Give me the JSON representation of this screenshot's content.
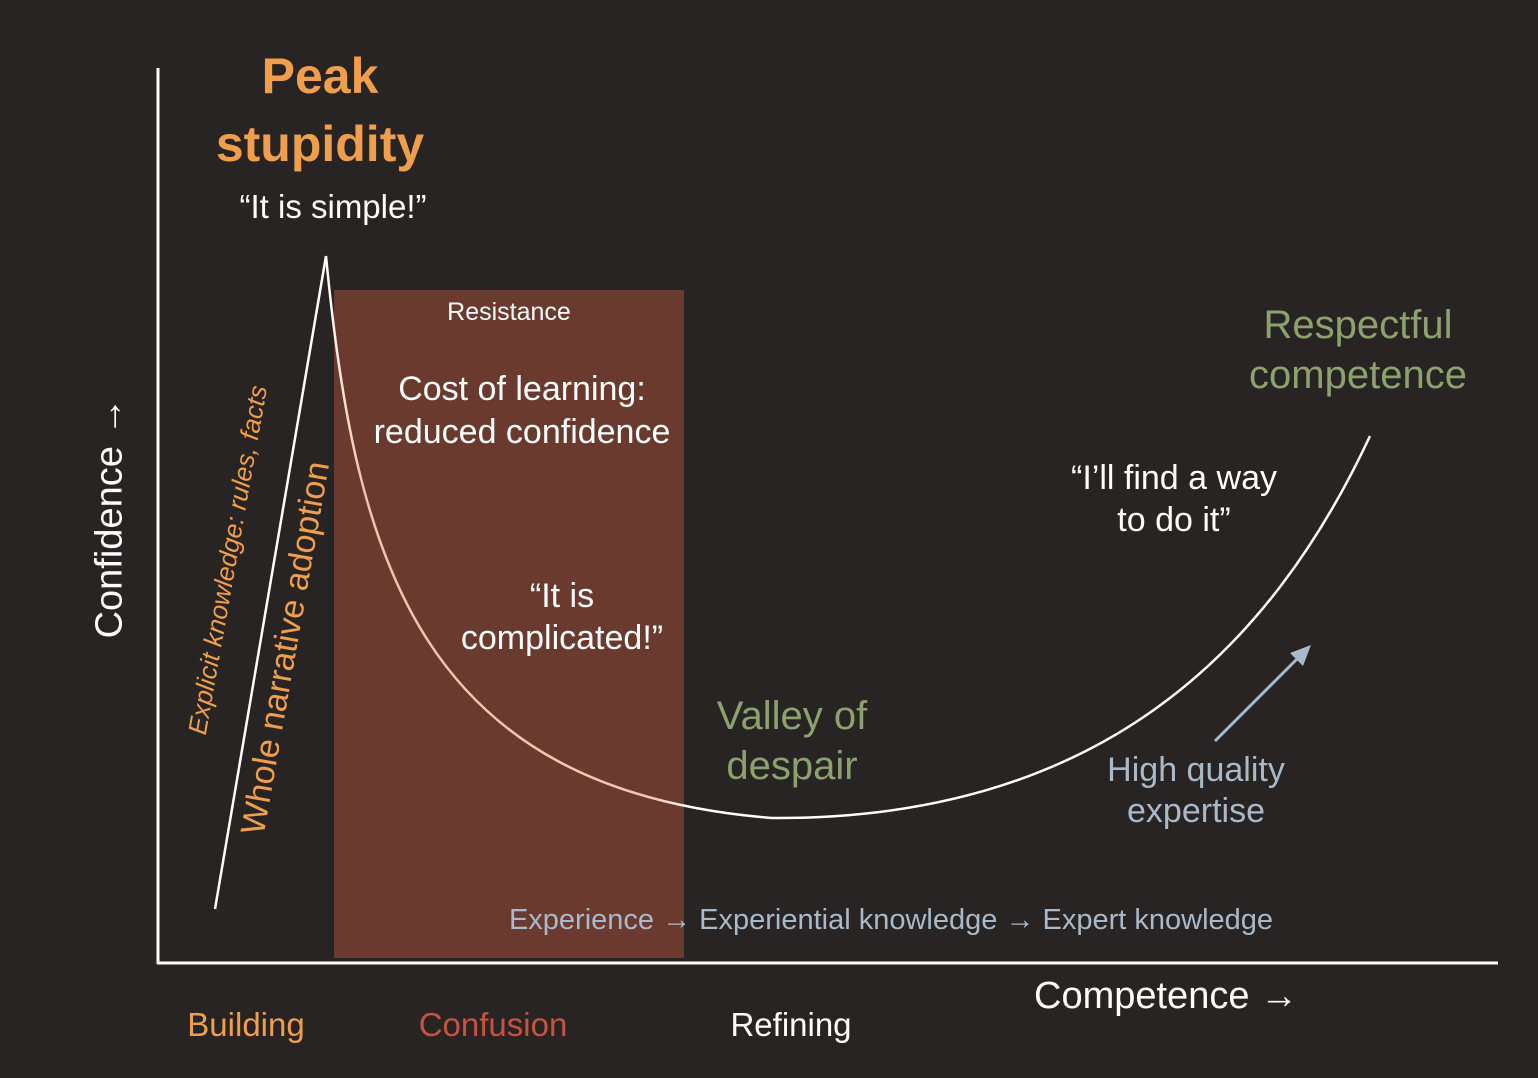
{
  "axes": {
    "y_label": "Confidence →",
    "x_label": "Competence →"
  },
  "peak": {
    "title_line1": "Peak",
    "title_line2": "stupidity",
    "quote": "“It is simple!”"
  },
  "resistance": {
    "label": "Resistance",
    "cost_line1": "Cost of learning:",
    "cost_line2": "reduced confidence",
    "quote_line1": "“It is",
    "quote_line2": "complicated!”"
  },
  "valley": {
    "line1": "Valley of",
    "line2": "despair"
  },
  "respectful": {
    "line1": "Respectful",
    "line2": "competence",
    "quote_line1": "“I’ll find a way",
    "quote_line2": "to do it”"
  },
  "expertise": {
    "line1": "High quality",
    "line2": "expertise"
  },
  "rotated": {
    "explicit": "Explicit knowledge: rules, facts",
    "narrative": "Whole narrative adoption"
  },
  "knowledge_chain": "Experience → Experiential knowledge → Expert knowledge",
  "phases": {
    "building": "Building",
    "confusion": "Confusion",
    "refining": "Refining"
  },
  "colors": {
    "background": "#282423",
    "peak": "#ef9e4c",
    "resistance_box": "#6b3a2f",
    "green_label": "#8ca26e",
    "blue_label": "#a9b9c9",
    "confusion": "#c5533f",
    "curve": "#ffffff"
  }
}
